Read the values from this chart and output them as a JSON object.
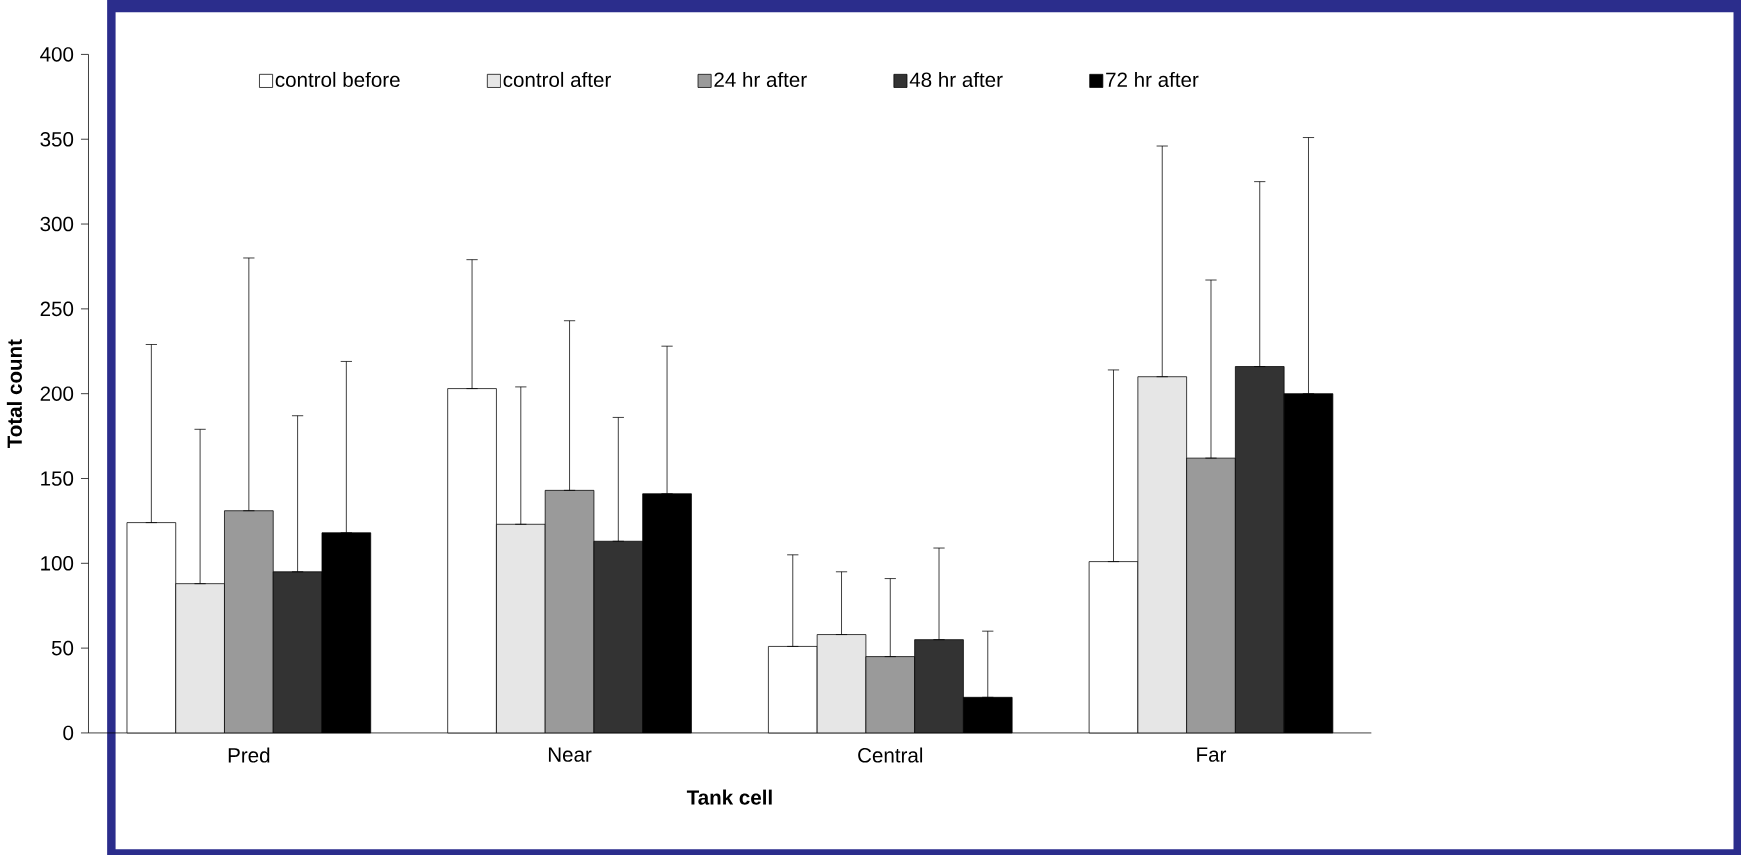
{
  "chart_data": {
    "type": "bar",
    "xlabel": "Tank cell",
    "ylabel": "Total count",
    "categories": [
      "Pred",
      "Near",
      "Central",
      "Far"
    ],
    "ylim": [
      0,
      400
    ],
    "yticks": [
      0,
      50,
      100,
      150,
      200,
      250,
      300,
      350,
      400
    ],
    "legend": "top",
    "grid": false,
    "series": [
      {
        "name": "control before",
        "color": "#ffffff",
        "values": [
          124,
          203,
          51,
          101
        ],
        "errors": [
          [
            124,
            229
          ],
          [
            203,
            279
          ],
          [
            51,
            105
          ],
          [
            101,
            214
          ]
        ]
      },
      {
        "name": "control after",
        "color": "#e6e6e6",
        "values": [
          88,
          123,
          58,
          210
        ],
        "errors": [
          [
            88,
            179
          ],
          [
            123,
            204
          ],
          [
            58,
            95
          ],
          [
            210,
            346
          ]
        ]
      },
      {
        "name": "24 hr after",
        "color": "#9a9a9a",
        "values": [
          131,
          143,
          45,
          162
        ],
        "errors": [
          [
            131,
            280
          ],
          [
            143,
            243
          ],
          [
            45,
            91
          ],
          [
            162,
            267
          ]
        ]
      },
      {
        "name": "48 hr after",
        "color": "#333333",
        "values": [
          95,
          113,
          55,
          216
        ],
        "errors": [
          [
            95,
            187
          ],
          [
            113,
            186
          ],
          [
            55,
            109
          ],
          [
            216,
            325
          ]
        ]
      },
      {
        "name": "72 hr after",
        "color": "#000000",
        "values": [
          118,
          141,
          21,
          200
        ],
        "errors": [
          [
            118,
            219
          ],
          [
            141,
            228
          ],
          [
            21,
            60
          ],
          [
            200,
            351
          ]
        ]
      }
    ]
  }
}
